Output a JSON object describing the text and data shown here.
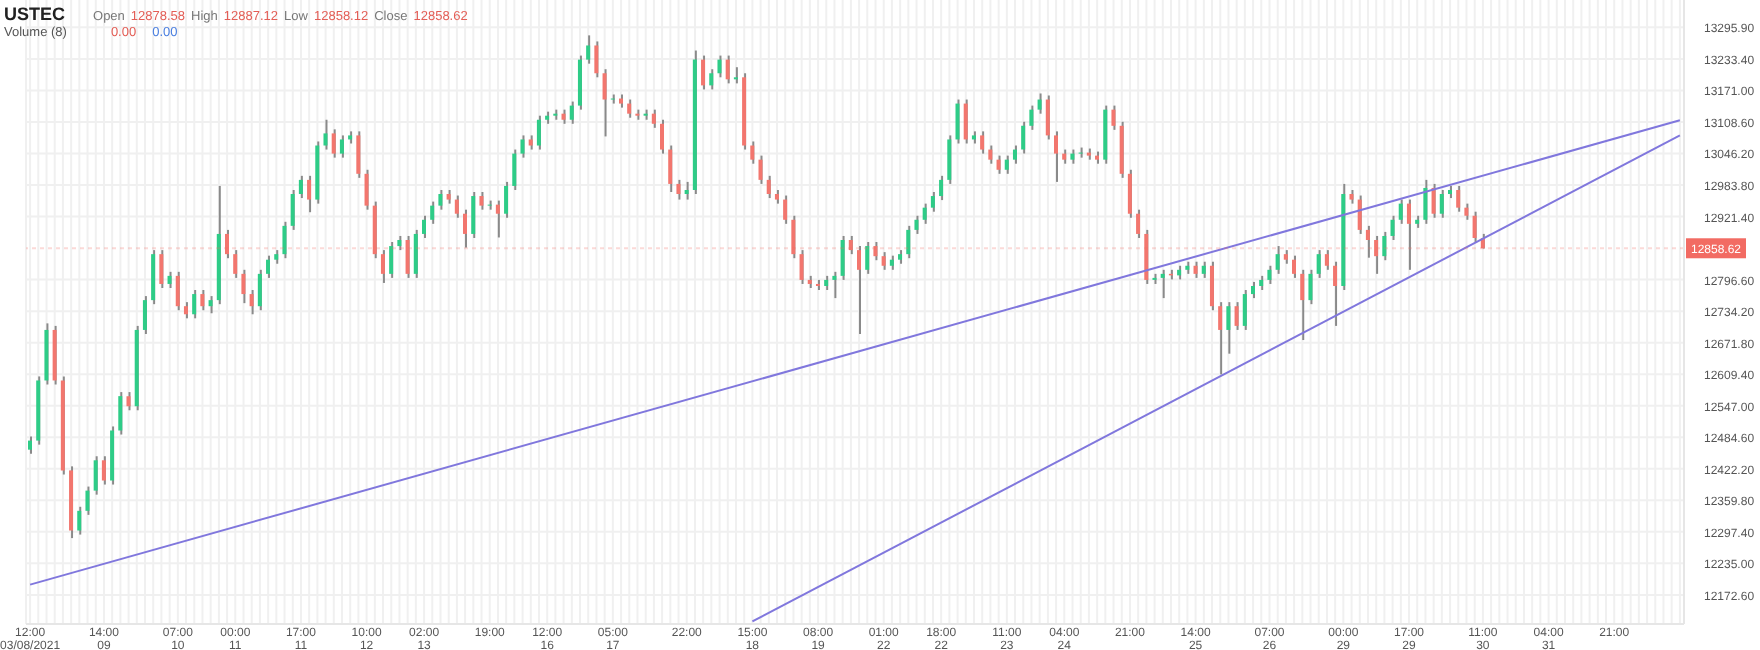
{
  "chart_data": {
    "type": "candlestick",
    "title": "USTEC",
    "annotations": [
      "Open",
      "12878.58",
      "High",
      "12887.12",
      "Low",
      "12858.12",
      "Close",
      "12858.62",
      "Volume (8)",
      "0.00",
      "0.00"
    ],
    "categories": [
      "12:00\n03/08/2021",
      null,
      null,
      null,
      null,
      null,
      null,
      null,
      null,
      "14:00\n09",
      null,
      null,
      null,
      null,
      null,
      null,
      null,
      null,
      "07:00\n10",
      null,
      null,
      null,
      null,
      null,
      null,
      "00:00\n11",
      null,
      null,
      null,
      null,
      null,
      null,
      null,
      "17:00\n11",
      null,
      null,
      null,
      null,
      null,
      null,
      null,
      "10:00\n12",
      null,
      null,
      null,
      null,
      null,
      null,
      "02:00\n13",
      null,
      null,
      null,
      null,
      null,
      null,
      null,
      "19:00",
      null,
      null,
      null,
      null,
      null,
      null,
      "12:00\n16",
      null,
      null,
      null,
      null,
      null,
      null,
      null,
      "05:00\n17",
      null,
      null,
      null,
      null,
      null,
      null,
      null,
      null,
      "22:00",
      null,
      null,
      null,
      null,
      null,
      null,
      null,
      "15:00\n18",
      null,
      null,
      null,
      null,
      null,
      null,
      null,
      "08:00\n19",
      null,
      null,
      null,
      null,
      null,
      null,
      null,
      "01:00\n22",
      null,
      null,
      null,
      null,
      null,
      null,
      "18:00\n22",
      null,
      null,
      null,
      null,
      null,
      null,
      null,
      "11:00\n23",
      null,
      null,
      null,
      null,
      null,
      null,
      "04:00\n24",
      null,
      null,
      null,
      null,
      null,
      null,
      null,
      "21:00",
      null,
      null,
      null,
      null,
      null,
      null,
      null,
      "14:00\n25",
      null,
      null,
      null,
      null,
      null,
      null,
      null,
      null,
      "07:00\n26",
      null,
      null,
      null,
      null,
      null,
      null,
      null,
      null,
      "00:00\n29",
      null,
      null,
      null,
      null,
      null,
      null,
      null,
      "17:00\n29",
      null,
      null,
      null,
      null,
      null,
      null,
      null,
      null,
      "11:00\n30",
      null,
      null,
      null,
      null,
      null,
      null,
      null,
      "04:00\n31",
      null,
      null,
      null,
      null,
      null,
      null,
      null,
      "21:00",
      null,
      null,
      null,
      null,
      null,
      null,
      null,
      null
    ],
    "ohlc": [
      [
        12460,
        12486,
        12452,
        12478
      ],
      [
        12478,
        12605,
        12470,
        12597
      ],
      [
        12597,
        12710,
        12589,
        12697
      ],
      [
        12697,
        12705,
        12589,
        12597
      ],
      [
        12597,
        12605,
        12411,
        12419
      ],
      [
        12419,
        12427,
        12285,
        12300
      ],
      [
        12300,
        12347,
        12292,
        12339
      ],
      [
        12339,
        12387,
        12331,
        12379
      ],
      [
        12379,
        12447,
        12371,
        12439
      ],
      [
        12439,
        12447,
        12391,
        12399
      ],
      [
        12399,
        12506,
        12391,
        12498
      ],
      [
        12498,
        12574,
        12490,
        12566
      ],
      [
        12566,
        12574,
        12538,
        12546
      ],
      [
        12546,
        12705,
        12538,
        12697
      ],
      [
        12697,
        12764,
        12689,
        12756
      ],
      [
        12756,
        12855,
        12748,
        12847
      ],
      [
        12847,
        12855,
        12780,
        12788
      ],
      [
        12788,
        12812,
        12780,
        12804
      ],
      [
        12804,
        12812,
        12736,
        12744
      ],
      [
        12744,
        12752,
        12720,
        12728
      ],
      [
        12728,
        12776,
        12720,
        12768
      ],
      [
        12768,
        12776,
        12736,
        12744
      ],
      [
        12744,
        12764,
        12730,
        12756
      ],
      [
        12756,
        12982,
        12748,
        12887
      ],
      [
        12887,
        12895,
        12839,
        12847
      ],
      [
        12847,
        12855,
        12800,
        12808
      ],
      [
        12808,
        12816,
        12750,
        12768
      ],
      [
        12768,
        12776,
        12728,
        12744
      ],
      [
        12744,
        12816,
        12736,
        12808
      ],
      [
        12808,
        12844,
        12800,
        12836
      ],
      [
        12836,
        12855,
        12828,
        12847
      ],
      [
        12847,
        12911,
        12839,
        12903
      ],
      [
        12903,
        12974,
        12895,
        12966
      ],
      [
        12966,
        13002,
        12958,
        12994
      ],
      [
        12994,
        13002,
        12930,
        12955
      ],
      [
        12955,
        13070,
        12947,
        13062
      ],
      [
        13062,
        13113,
        13054,
        13086
      ],
      [
        13086,
        13094,
        13038,
        13046
      ],
      [
        13046,
        13082,
        13038,
        13074
      ],
      [
        13074,
        13090,
        13066,
        13082
      ],
      [
        13082,
        13090,
        12998,
        13006
      ],
      [
        13006,
        13014,
        12935,
        12943
      ],
      [
        12943,
        12951,
        12839,
        12847
      ],
      [
        12847,
        12855,
        12790,
        12808
      ],
      [
        12808,
        12871,
        12800,
        12863
      ],
      [
        12863,
        12883,
        12855,
        12875
      ],
      [
        12875,
        12883,
        12800,
        12808
      ],
      [
        12808,
        12895,
        12800,
        12887
      ],
      [
        12887,
        12923,
        12879,
        12915
      ],
      [
        12915,
        12951,
        12907,
        12943
      ],
      [
        12943,
        12974,
        12935,
        12966
      ],
      [
        12966,
        12974,
        12947,
        12955
      ],
      [
        12955,
        12963,
        12919,
        12927
      ],
      [
        12927,
        12935,
        12860,
        12887
      ],
      [
        12887,
        12970,
        12879,
        12962
      ],
      [
        12962,
        12970,
        12935,
        12943
      ],
      [
        12943,
        12953,
        12935,
        12945
      ],
      [
        12945,
        12953,
        12880,
        12927
      ],
      [
        12927,
        12990,
        12919,
        12982
      ],
      [
        12982,
        13054,
        12974,
        13046
      ],
      [
        13046,
        13082,
        13038,
        13074
      ],
      [
        13074,
        13082,
        13054,
        13062
      ],
      [
        13062,
        13121,
        13054,
        13113
      ],
      [
        13113,
        13129,
        13105,
        13121
      ],
      [
        13121,
        13133,
        13113,
        13125
      ],
      [
        13125,
        13133,
        13105,
        13113
      ],
      [
        13113,
        13149,
        13105,
        13141
      ],
      [
        13141,
        13240,
        13133,
        13232
      ],
      [
        13232,
        13280,
        13224,
        13260
      ],
      [
        13260,
        13268,
        13197,
        13205
      ],
      [
        13205,
        13213,
        13080,
        13153
      ],
      [
        13153,
        13163,
        13145,
        13155
      ],
      [
        13155,
        13163,
        13137,
        13145
      ],
      [
        13145,
        13153,
        13117,
        13125
      ],
      [
        13125,
        13133,
        13113,
        13121
      ],
      [
        13121,
        13133,
        13113,
        13125
      ],
      [
        13125,
        13133,
        13097,
        13105
      ],
      [
        13105,
        13113,
        13046,
        13054
      ],
      [
        13054,
        13062,
        12970,
        12986
      ],
      [
        12986,
        12994,
        12955,
        12966
      ],
      [
        12966,
        12990,
        12955,
        12974
      ],
      [
        12974,
        13250,
        12966,
        13232
      ],
      [
        13232,
        13240,
        13173,
        13181
      ],
      [
        13181,
        13213,
        13173,
        13205
      ],
      [
        13205,
        13240,
        13197,
        13232
      ],
      [
        13232,
        13240,
        13185,
        13193
      ],
      [
        13193,
        13217,
        13185,
        13197
      ],
      [
        13197,
        13205,
        13054,
        13062
      ],
      [
        13062,
        13070,
        13026,
        13034
      ],
      [
        13034,
        13042,
        12986,
        12994
      ],
      [
        12994,
        13002,
        12958,
        12966
      ],
      [
        12966,
        12974,
        12947,
        12955
      ],
      [
        12955,
        12963,
        12907,
        12915
      ],
      [
        12915,
        12923,
        12839,
        12847
      ],
      [
        12847,
        12855,
        12788,
        12796
      ],
      [
        12796,
        12804,
        12780,
        12788
      ],
      [
        12788,
        12796,
        12776,
        12784
      ],
      [
        12784,
        12804,
        12776,
        12796
      ],
      [
        12796,
        12812,
        12760,
        12804
      ],
      [
        12804,
        12883,
        12796,
        12875
      ],
      [
        12875,
        12883,
        12847,
        12855
      ],
      [
        12855,
        12863,
        12689,
        12816
      ],
      [
        12816,
        12871,
        12808,
        12863
      ],
      [
        12863,
        12871,
        12835,
        12843
      ],
      [
        12843,
        12851,
        12816,
        12824
      ],
      [
        12824,
        12844,
        12816,
        12836
      ],
      [
        12836,
        12855,
        12828,
        12847
      ],
      [
        12847,
        12903,
        12839,
        12895
      ],
      [
        12895,
        12923,
        12887,
        12915
      ],
      [
        12915,
        12947,
        12907,
        12939
      ],
      [
        12939,
        12970,
        12931,
        12962
      ],
      [
        12962,
        13002,
        12954,
        12994
      ],
      [
        12994,
        13082,
        12986,
        13074
      ],
      [
        13074,
        13153,
        13066,
        13145
      ],
      [
        13145,
        13153,
        13066,
        13074
      ],
      [
        13074,
        13090,
        13066,
        13082
      ],
      [
        13082,
        13090,
        13046,
        13054
      ],
      [
        13054,
        13062,
        13026,
        13034
      ],
      [
        13034,
        13042,
        13006,
        13014
      ],
      [
        13014,
        13042,
        13006,
        13034
      ],
      [
        13034,
        13062,
        13026,
        13054
      ],
      [
        13054,
        13109,
        13046,
        13101
      ],
      [
        13101,
        13141,
        13093,
        13133
      ],
      [
        13133,
        13165,
        13125,
        13153
      ],
      [
        13153,
        13161,
        13074,
        13082
      ],
      [
        13082,
        13090,
        12990,
        13046
      ],
      [
        13046,
        13054,
        13026,
        13034
      ],
      [
        13034,
        13054,
        13026,
        13046
      ],
      [
        13046,
        13058,
        13038,
        13048
      ],
      [
        13048,
        13056,
        13034,
        13042
      ],
      [
        13042,
        13050,
        13026,
        13034
      ],
      [
        13034,
        13141,
        13026,
        13133
      ],
      [
        13133,
        13141,
        13093,
        13101
      ],
      [
        13101,
        13109,
        12998,
        13006
      ],
      [
        13006,
        13014,
        12919,
        12927
      ],
      [
        12927,
        12935,
        12879,
        12887
      ],
      [
        12887,
        12895,
        12788,
        12796
      ],
      [
        12796,
        12808,
        12788,
        12800
      ],
      [
        12800,
        12816,
        12760,
        12808
      ],
      [
        12808,
        12816,
        12797,
        12805
      ],
      [
        12805,
        12824,
        12797,
        12816
      ],
      [
        12816,
        12832,
        12808,
        12824
      ],
      [
        12824,
        12832,
        12800,
        12808
      ],
      [
        12808,
        12832,
        12800,
        12824
      ],
      [
        12824,
        12832,
        12736,
        12744
      ],
      [
        12744,
        12752,
        12609,
        12697
      ],
      [
        12697,
        12752,
        12650,
        12744
      ],
      [
        12744,
        12752,
        12697,
        12705
      ],
      [
        12705,
        12776,
        12697,
        12768
      ],
      [
        12768,
        12792,
        12760,
        12784
      ],
      [
        12784,
        12804,
        12776,
        12796
      ],
      [
        12796,
        12824,
        12788,
        12816
      ],
      [
        12816,
        12863,
        12808,
        12847
      ],
      [
        12847,
        12855,
        12828,
        12836
      ],
      [
        12836,
        12844,
        12800,
        12808
      ],
      [
        12808,
        12816,
        12677,
        12756
      ],
      [
        12756,
        12816,
        12748,
        12808
      ],
      [
        12808,
        12855,
        12800,
        12847
      ],
      [
        12847,
        12855,
        12816,
        12824
      ],
      [
        12824,
        12832,
        12705,
        12784
      ],
      [
        12784,
        12986,
        12776,
        12966
      ],
      [
        12966,
        12974,
        12947,
        12955
      ],
      [
        12955,
        12963,
        12887,
        12895
      ],
      [
        12895,
        12903,
        12840,
        12875
      ],
      [
        12875,
        12883,
        12808,
        12843
      ],
      [
        12843,
        12891,
        12835,
        12883
      ],
      [
        12883,
        12923,
        12875,
        12915
      ],
      [
        12915,
        12955,
        12907,
        12947
      ],
      [
        12947,
        12955,
        12816,
        12907
      ],
      [
        12907,
        12923,
        12899,
        12915
      ],
      [
        12915,
        12994,
        12907,
        12978
      ],
      [
        12978,
        12986,
        12919,
        12927
      ],
      [
        12927,
        12974,
        12919,
        12966
      ],
      [
        12966,
        12982,
        12958,
        12974
      ],
      [
        12974,
        12982,
        12931,
        12939
      ],
      [
        12939,
        12947,
        12915,
        12923
      ],
      [
        12923,
        12931,
        12871,
        12879
      ],
      [
        12878.58,
        12887.12,
        12858.12,
        12858.62
      ],
      null,
      null,
      null,
      null,
      null,
      null,
      null,
      null,
      null,
      null,
      null,
      null,
      null,
      null,
      null,
      null,
      null,
      null,
      null,
      null,
      null,
      null,
      null,
      null
    ],
    "colors": [
      "#2ecc87",
      "#2ecc87",
      "#2ecc87",
      "#f2766e",
      "#f2766e",
      "#f2766e",
      "#2ecc87",
      "#2ecc87",
      "#2ecc87",
      "#f2766e",
      "#2ecc87",
      "#2ecc87",
      "#f2766e",
      "#2ecc87",
      "#2ecc87",
      "#2ecc87",
      "#f2766e",
      "#2ecc87",
      "#f2766e",
      "#f2766e",
      "#2ecc87",
      "#f2766e",
      "#2ecc87",
      "#2ecc87",
      "#f2766e",
      "#f2766e",
      "#f2766e",
      "#f2766e",
      "#2ecc87",
      "#2ecc87",
      "#2ecc87",
      "#2ecc87",
      "#2ecc87",
      "#2ecc87",
      "#f2766e",
      "#2ecc87",
      "#2ecc87",
      "#f2766e",
      "#2ecc87",
      "#2ecc87",
      "#f2766e",
      "#f2766e",
      "#f2766e",
      "#f2766e",
      "#2ecc87",
      "#2ecc87",
      "#f2766e",
      "#2ecc87",
      "#2ecc87",
      "#2ecc87",
      "#2ecc87",
      "#f2766e",
      "#f2766e",
      "#f2766e",
      "#2ecc87",
      "#f2766e",
      "#2ecc87",
      "#f2766e",
      "#2ecc87",
      "#2ecc87",
      "#2ecc87",
      "#f2766e",
      "#2ecc87",
      "#2ecc87",
      "#2ecc87",
      "#f2766e",
      "#2ecc87",
      "#2ecc87",
      "#2ecc87",
      "#f2766e",
      "#f2766e",
      "#2ecc87",
      "#f2766e",
      "#f2766e",
      "#f2766e",
      "#2ecc87",
      "#f2766e",
      "#f2766e",
      "#f2766e",
      "#f2766e",
      "#2ecc87",
      "#2ecc87",
      "#f2766e",
      "#2ecc87",
      "#2ecc87",
      "#f2766e",
      "#2ecc87",
      "#f2766e",
      "#f2766e",
      "#f2766e",
      "#f2766e",
      "#f2766e",
      "#f2766e",
      "#f2766e",
      "#f2766e",
      "#f2766e",
      "#f2766e",
      "#2ecc87",
      "#2ecc87",
      "#2ecc87",
      "#f2766e",
      "#f2766e",
      "#2ecc87",
      "#f2766e",
      "#f2766e",
      "#2ecc87",
      "#2ecc87",
      "#2ecc87",
      "#2ecc87",
      "#2ecc87",
      "#2ecc87",
      "#2ecc87",
      "#2ecc87",
      "#2ecc87",
      "#f2766e",
      "#2ecc87",
      "#f2766e",
      "#f2766e",
      "#f2766e",
      "#2ecc87",
      "#2ecc87",
      "#2ecc87",
      "#2ecc87",
      "#2ecc87",
      "#f2766e",
      "#f2766e",
      "#f2766e",
      "#2ecc87",
      "#2ecc87",
      "#f2766e",
      "#f2766e",
      "#2ecc87",
      "#f2766e",
      "#f2766e",
      "#f2766e",
      "#f2766e",
      "#f2766e",
      "#2ecc87",
      "#2ecc87",
      "#f2766e",
      "#2ecc87",
      "#2ecc87",
      "#f2766e",
      "#2ecc87",
      "#f2766e",
      "#f2766e",
      "#2ecc87",
      "#f2766e",
      "#2ecc87",
      "#2ecc87",
      "#2ecc87",
      "#2ecc87",
      "#2ecc87",
      "#f2766e",
      "#f2766e",
      "#f2766e",
      "#2ecc87",
      "#2ecc87",
      "#f2766e",
      "#f2766e",
      "#2ecc87",
      "#f2766e",
      "#f2766e",
      "#f2766e",
      "#f2766e",
      "#2ecc87",
      "#2ecc87",
      "#2ecc87",
      "#f2766e",
      "#2ecc87",
      "#2ecc87",
      "#f2766e",
      "#2ecc87",
      "#2ecc87",
      "#f2766e",
      "#f2766e",
      "#f2766e",
      "#f2766e",
      null,
      null,
      null,
      null,
      null,
      null,
      null,
      null,
      null,
      null,
      null,
      null,
      null,
      null,
      null,
      null,
      null,
      null,
      null,
      null,
      null,
      null,
      null,
      null
    ],
    "series": [
      {
        "type": "line",
        "color": "#8077dd",
        "values": [
          12193,
          null,
          null,
          null,
          null,
          null,
          null,
          null,
          null,
          null,
          null,
          null,
          null,
          null,
          null,
          null,
          null,
          null,
          null,
          null,
          null,
          null,
          null,
          null,
          null,
          null,
          null,
          null,
          null,
          null,
          null,
          null,
          null,
          null,
          null,
          null,
          null,
          null,
          null,
          null,
          null,
          null,
          null,
          null,
          null,
          null,
          null,
          null,
          null,
          null,
          null,
          null,
          null,
          null,
          null,
          null,
          null,
          null,
          null,
          null,
          null,
          null,
          null,
          null,
          null,
          null,
          null,
          null,
          null,
          null,
          null,
          null,
          null,
          null,
          null,
          null,
          null,
          null,
          null,
          null,
          null,
          null,
          null,
          null,
          null,
          null,
          null,
          null,
          null,
          null,
          null,
          null,
          null,
          null,
          null,
          null,
          null,
          null,
          null,
          null,
          null,
          null,
          null,
          null,
          null,
          null,
          null,
          null,
          null,
          null,
          null,
          null,
          null,
          null,
          null,
          null,
          null,
          null,
          null,
          null,
          null,
          null,
          null,
          null,
          null,
          null,
          null,
          null,
          null,
          null,
          null,
          null,
          null,
          null,
          null,
          null,
          null,
          null,
          null,
          null,
          null,
          null,
          null,
          null,
          null,
          null,
          null,
          null,
          null,
          null,
          null,
          null,
          null,
          null,
          null,
          null,
          null,
          null,
          null,
          null,
          null,
          null,
          null,
          null,
          null,
          null,
          null,
          null,
          null,
          null,
          null,
          null,
          null,
          null,
          null,
          null,
          null,
          null,
          null,
          null,
          null,
          null,
          null,
          null,
          null,
          null,
          null,
          null,
          null,
          null,
          null,
          null,
          null,
          null,
          null,
          null,
          null,
          null,
          null,
          null,
          null,
          13112
        ]
      },
      {
        "type": "line",
        "color": "#8077dd",
        "values": [
          null,
          null,
          null,
          null,
          null,
          null,
          null,
          null,
          null,
          null,
          null,
          null,
          null,
          null,
          null,
          null,
          null,
          null,
          null,
          null,
          null,
          null,
          null,
          null,
          null,
          null,
          null,
          null,
          null,
          null,
          null,
          null,
          null,
          null,
          null,
          null,
          null,
          null,
          null,
          null,
          null,
          null,
          null,
          null,
          null,
          null,
          null,
          null,
          null,
          null,
          null,
          null,
          null,
          null,
          null,
          null,
          null,
          null,
          null,
          null,
          null,
          null,
          null,
          null,
          null,
          null,
          null,
          null,
          null,
          null,
          null,
          null,
          null,
          null,
          null,
          null,
          null,
          null,
          null,
          null,
          null,
          null,
          null,
          null,
          null,
          null,
          null,
          null,
          12120,
          null,
          null,
          null,
          null,
          null,
          null,
          null,
          null,
          null,
          null,
          null,
          null,
          null,
          null,
          null,
          null,
          null,
          null,
          null,
          null,
          null,
          null,
          null,
          null,
          null,
          null,
          null,
          null,
          null,
          null,
          null,
          null,
          null,
          null,
          null,
          null,
          null,
          null,
          null,
          null,
          null,
          null,
          null,
          null,
          null,
          null,
          null,
          null,
          null,
          null,
          null,
          null,
          null,
          null,
          null,
          null,
          null,
          null,
          null,
          null,
          null,
          null,
          null,
          null,
          null,
          null,
          null,
          null,
          null,
          null,
          null,
          null,
          null,
          null,
          null,
          null,
          null,
          null,
          null,
          null,
          null,
          null,
          null,
          null,
          null,
          null,
          null,
          null,
          null,
          null,
          null,
          null,
          null,
          null,
          null,
          null,
          null,
          null,
          null,
          null,
          null,
          null,
          null,
          null,
          null,
          null,
          null,
          null,
          null,
          null,
          null,
          null,
          13082
        ]
      }
    ],
    "ylim": [
      12115,
      13350
    ],
    "yticks": [
      {
        "value": 12172.6,
        "label": "12172.60"
      },
      {
        "value": 12235,
        "label": "12235.00"
      },
      {
        "value": 12297.4,
        "label": "12297.40"
      },
      {
        "value": 12359.8,
        "label": "12359.80"
      },
      {
        "value": 12422.2,
        "label": "12422.20"
      },
      {
        "value": 12484.6,
        "label": "12484.60"
      },
      {
        "value": 12547,
        "label": "12547.00"
      },
      {
        "value": 12609.4,
        "label": "12609.40"
      },
      {
        "value": 12671.8,
        "label": "12671.80"
      },
      {
        "value": 12734.2,
        "label": "12734.20"
      },
      {
        "value": 12796.6,
        "label": "12796.60"
      },
      {
        "value": 12921.4,
        "label": "12921.40"
      },
      {
        "value": 12983.8,
        "label": "12983.80"
      },
      {
        "value": 13046.2,
        "label": "13046.20"
      },
      {
        "value": 13108.6,
        "label": "13108.60"
      },
      {
        "value": 13171,
        "label": "13171.00"
      },
      {
        "value": 13233.4,
        "label": "13233.40"
      },
      {
        "value": 13295.9,
        "label": "13295.90"
      }
    ],
    "grid": true,
    "ref_lines": [
      {
        "axis": "y",
        "value": 12858.62,
        "label": "12858.62",
        "color": "#f26b63"
      }
    ]
  }
}
